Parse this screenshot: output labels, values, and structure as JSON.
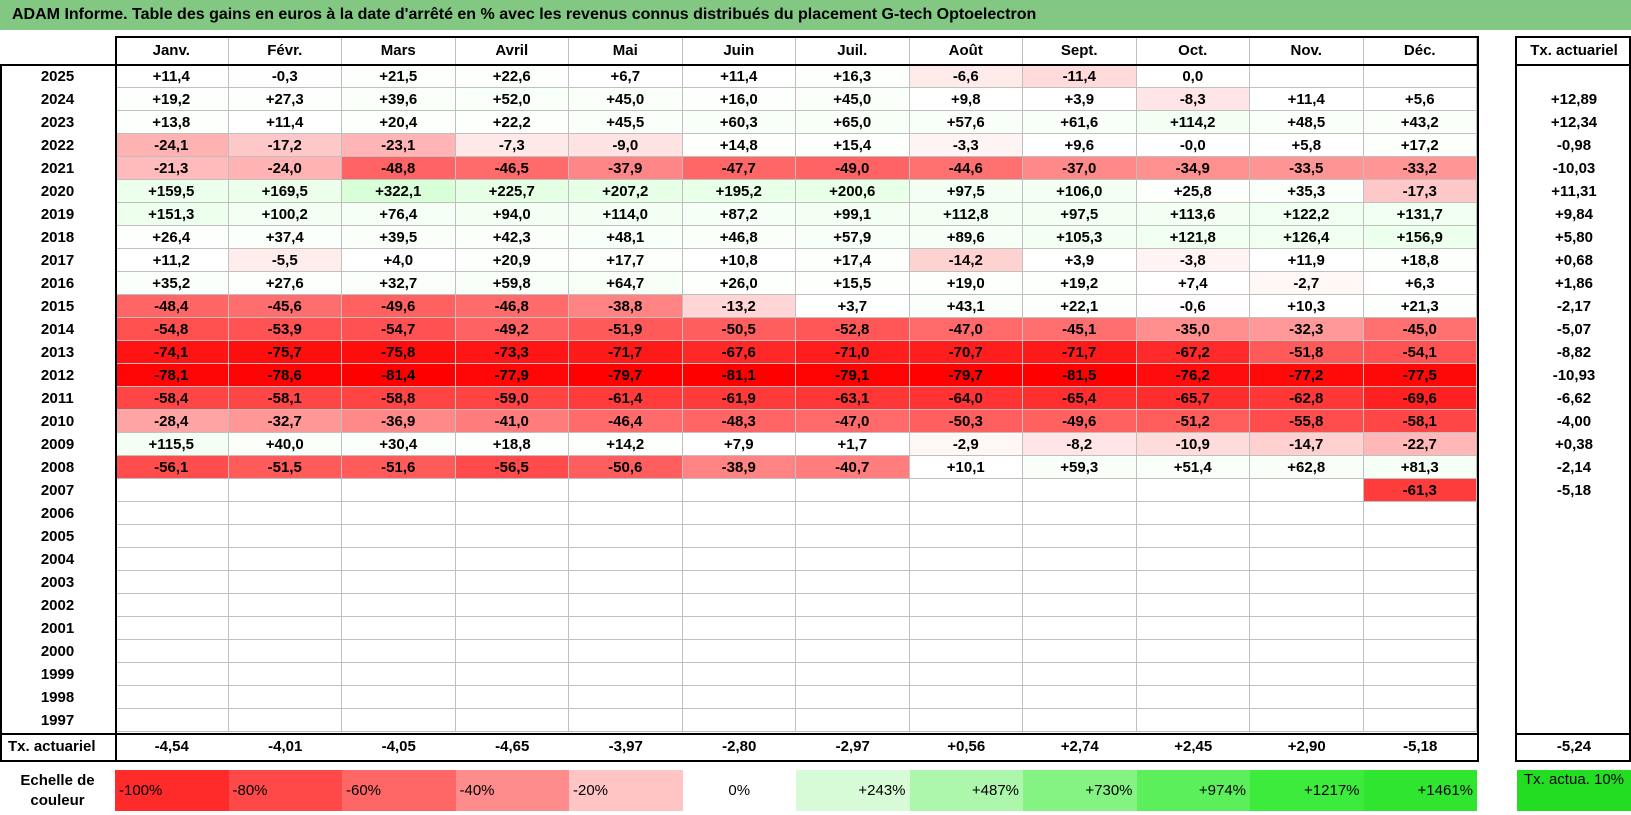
{
  "title": "ADAM Informe. Table des gains en euros à la date d'arrêté en % avec les revenus connus distribués du placement G-tech Optoelectron",
  "chart_data": {
    "type": "table",
    "months": [
      "Janv.",
      "Févr.",
      "Mars",
      "Avril",
      "Mai",
      "Juin",
      "Juil.",
      "Août",
      "Sept.",
      "Oct.",
      "Nov.",
      "Déc."
    ],
    "rate_header": "Tx. actuariel",
    "rows": [
      {
        "year": "2025",
        "values": [
          "+11,4",
          "-0,3",
          "+21,5",
          "+22,6",
          "+6,7",
          "+11,4",
          "+16,3",
          "-6,6",
          "-11,4",
          "0,0",
          "",
          ""
        ],
        "rate": ""
      },
      {
        "year": "2024",
        "values": [
          "+19,2",
          "+27,3",
          "+39,6",
          "+52,0",
          "+45,0",
          "+16,0",
          "+45,0",
          "+9,8",
          "+3,9",
          "-8,3",
          "+11,4",
          "+5,6"
        ],
        "rate": "+12,89"
      },
      {
        "year": "2023",
        "values": [
          "+13,8",
          "+11,4",
          "+20,4",
          "+22,2",
          "+45,5",
          "+60,3",
          "+65,0",
          "+57,6",
          "+61,6",
          "+114,2",
          "+48,5",
          "+43,2"
        ],
        "rate": "+12,34"
      },
      {
        "year": "2022",
        "values": [
          "-24,1",
          "-17,2",
          "-23,1",
          "-7,3",
          "-9,0",
          "+14,8",
          "+15,4",
          "-3,3",
          "+9,6",
          "-0,0",
          "+5,8",
          "+17,2"
        ],
        "rate": "-0,98"
      },
      {
        "year": "2021",
        "values": [
          "-21,3",
          "-24,0",
          "-48,8",
          "-46,5",
          "-37,9",
          "-47,7",
          "-49,0",
          "-44,6",
          "-37,0",
          "-34,9",
          "-33,5",
          "-33,2"
        ],
        "rate": "-10,03"
      },
      {
        "year": "2020",
        "values": [
          "+159,5",
          "+169,5",
          "+322,1",
          "+225,7",
          "+207,2",
          "+195,2",
          "+200,6",
          "+97,5",
          "+106,0",
          "+25,8",
          "+35,3",
          "-17,3"
        ],
        "rate": "+11,31"
      },
      {
        "year": "2019",
        "values": [
          "+151,3",
          "+100,2",
          "+76,4",
          "+94,0",
          "+114,0",
          "+87,2",
          "+99,1",
          "+112,8",
          "+97,5",
          "+113,6",
          "+122,2",
          "+131,7"
        ],
        "rate": "+9,84"
      },
      {
        "year": "2018",
        "values": [
          "+26,4",
          "+37,4",
          "+39,5",
          "+42,3",
          "+48,1",
          "+46,8",
          "+57,9",
          "+89,6",
          "+105,3",
          "+121,8",
          "+126,4",
          "+156,9"
        ],
        "rate": "+5,80"
      },
      {
        "year": "2017",
        "values": [
          "+11,2",
          "-5,5",
          "+4,0",
          "+20,9",
          "+17,7",
          "+10,8",
          "+17,4",
          "-14,2",
          "+3,9",
          "-3,8",
          "+11,9",
          "+18,8"
        ],
        "rate": "+0,68"
      },
      {
        "year": "2016",
        "values": [
          "+35,2",
          "+27,6",
          "+32,7",
          "+59,8",
          "+64,7",
          "+26,0",
          "+15,5",
          "+19,0",
          "+19,2",
          "+7,4",
          "-2,7",
          "+6,3"
        ],
        "rate": "+1,86"
      },
      {
        "year": "2015",
        "values": [
          "-48,4",
          "-45,6",
          "-49,6",
          "-46,8",
          "-38,8",
          "-13,2",
          "+3,7",
          "+43,1",
          "+22,1",
          "-0,6",
          "+10,3",
          "+21,3"
        ],
        "rate": "-2,17"
      },
      {
        "year": "2014",
        "values": [
          "-54,8",
          "-53,9",
          "-54,7",
          "-49,2",
          "-51,9",
          "-50,5",
          "-52,8",
          "-47,0",
          "-45,1",
          "-35,0",
          "-32,3",
          "-45,0"
        ],
        "rate": "-5,07"
      },
      {
        "year": "2013",
        "values": [
          "-74,1",
          "-75,7",
          "-75,8",
          "-73,3",
          "-71,7",
          "-67,6",
          "-71,0",
          "-70,7",
          "-71,7",
          "-67,2",
          "-51,8",
          "-54,1"
        ],
        "rate": "-8,82"
      },
      {
        "year": "2012",
        "values": [
          "-78,1",
          "-78,6",
          "-81,4",
          "-77,9",
          "-79,7",
          "-81,1",
          "-79,1",
          "-79,7",
          "-81,5",
          "-76,2",
          "-77,2",
          "-77,5"
        ],
        "rate": "-10,93"
      },
      {
        "year": "2011",
        "values": [
          "-58,4",
          "-58,1",
          "-58,8",
          "-59,0",
          "-61,4",
          "-61,9",
          "-63,1",
          "-64,0",
          "-65,4",
          "-65,7",
          "-62,8",
          "-69,6"
        ],
        "rate": "-6,62"
      },
      {
        "year": "2010",
        "values": [
          "-28,4",
          "-32,7",
          "-36,9",
          "-41,0",
          "-46,4",
          "-48,3",
          "-47,0",
          "-50,3",
          "-49,6",
          "-51,2",
          "-55,8",
          "-58,1"
        ],
        "rate": "-4,00"
      },
      {
        "year": "2009",
        "values": [
          "+115,5",
          "+40,0",
          "+30,4",
          "+18,8",
          "+14,2",
          "+7,9",
          "+1,7",
          "-2,9",
          "-8,2",
          "-10,9",
          "-14,7",
          "-22,7"
        ],
        "rate": "+0,38"
      },
      {
        "year": "2008",
        "values": [
          "-56,1",
          "-51,5",
          "-51,6",
          "-56,5",
          "-50,6",
          "-38,9",
          "-40,7",
          "+10,1",
          "+59,3",
          "+51,4",
          "+62,8",
          "+81,3"
        ],
        "rate": "-2,14"
      },
      {
        "year": "2007",
        "values": [
          "",
          "",
          "",
          "",
          "",
          "",
          "",
          "",
          "",
          "",
          "",
          "-61,3"
        ],
        "rate": "-5,18"
      },
      {
        "year": "2006",
        "values": [
          "",
          "",
          "",
          "",
          "",
          "",
          "",
          "",
          "",
          "",
          "",
          ""
        ],
        "rate": ""
      },
      {
        "year": "2005",
        "values": [
          "",
          "",
          "",
          "",
          "",
          "",
          "",
          "",
          "",
          "",
          "",
          ""
        ],
        "rate": ""
      },
      {
        "year": "2004",
        "values": [
          "",
          "",
          "",
          "",
          "",
          "",
          "",
          "",
          "",
          "",
          "",
          ""
        ],
        "rate": ""
      },
      {
        "year": "2003",
        "values": [
          "",
          "",
          "",
          "",
          "",
          "",
          "",
          "",
          "",
          "",
          "",
          ""
        ],
        "rate": ""
      },
      {
        "year": "2002",
        "values": [
          "",
          "",
          "",
          "",
          "",
          "",
          "",
          "",
          "",
          "",
          "",
          ""
        ],
        "rate": ""
      },
      {
        "year": "2001",
        "values": [
          "",
          "",
          "",
          "",
          "",
          "",
          "",
          "",
          "",
          "",
          "",
          ""
        ],
        "rate": ""
      },
      {
        "year": "2000",
        "values": [
          "",
          "",
          "",
          "",
          "",
          "",
          "",
          "",
          "",
          "",
          "",
          ""
        ],
        "rate": ""
      },
      {
        "year": "1999",
        "values": [
          "",
          "",
          "",
          "",
          "",
          "",
          "",
          "",
          "",
          "",
          "",
          ""
        ],
        "rate": ""
      },
      {
        "year": "1998",
        "values": [
          "",
          "",
          "",
          "",
          "",
          "",
          "",
          "",
          "",
          "",
          "",
          ""
        ],
        "rate": ""
      },
      {
        "year": "1997",
        "values": [
          "",
          "",
          "",
          "",
          "",
          "",
          "",
          "",
          "",
          "",
          "",
          ""
        ],
        "rate": ""
      }
    ],
    "summary_row": {
      "label": "Tx. actuariel",
      "values": [
        "-4,54",
        "-4,01",
        "-4,05",
        "-4,65",
        "-3,97",
        "-2,80",
        "-2,97",
        "+0,56",
        "+2,74",
        "+2,45",
        "+2,90",
        "-5,18"
      ],
      "rate": "-5,24"
    },
    "color_scale": {
      "label": "Echelle de couleur",
      "steps": [
        {
          "label": "-100%",
          "color": "#ff2b2b"
        },
        {
          "label": "-80%",
          "color": "#ff4848"
        },
        {
          "label": "-60%",
          "color": "#ff6666"
        },
        {
          "label": "-40%",
          "color": "#ff8c8c"
        },
        {
          "label": "-20%",
          "color": "#ffc4c4"
        },
        {
          "label": "0%",
          "color": "#ffffff"
        },
        {
          "label": "+243%",
          "color": "#d6fbd6"
        },
        {
          "label": "+487%",
          "color": "#adf7ad"
        },
        {
          "label": "+730%",
          "color": "#84f384"
        },
        {
          "label": "+974%",
          "color": "#5bef5b"
        },
        {
          "label": "+1217%",
          "color": "#3deb3d"
        },
        {
          "label": "+1461%",
          "color": "#2fe52f"
        }
      ],
      "rate_box": {
        "label": "Tx. actua. 10%",
        "color": "#22dd22"
      }
    },
    "colors": {
      "title_bg": "#82c882",
      "negative_max": "#ff0000",
      "positive_max": "#22dd22"
    }
  }
}
